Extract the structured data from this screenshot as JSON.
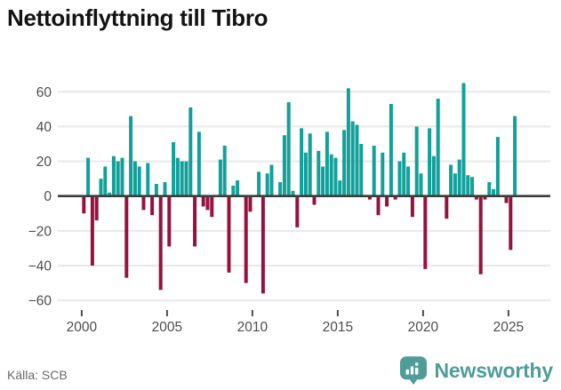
{
  "title": "Nettoinflyttning till Tibro",
  "footer": {
    "source": "Källa: SCB",
    "brand": "Newsworthy"
  },
  "colors": {
    "positive_bar": "#12A09A",
    "negative_bar": "#97113F",
    "zero_axis": "#3C3C3C",
    "gridline": "#E8E8E8",
    "tick_label": "#4D4D4D",
    "tick_mark": "#4D4D4D",
    "title_text": "#131313",
    "source_text": "#696969",
    "brand_teal": "#4F9C98",
    "logo_glyph": "#FFFFFF",
    "background": "#FFFFFF"
  },
  "chart_data": {
    "type": "bar",
    "title": "Nettoinflyttning till Tibro",
    "frequency": "quarterly",
    "start_period": "2000-Q1",
    "end_period": "2025-Q2",
    "grid": true,
    "legend": false,
    "ylim": [
      -62,
      67
    ],
    "y_ticks": [
      60,
      40,
      20,
      0,
      -20,
      -40,
      -60
    ],
    "y_tick_labels": [
      "60",
      "40",
      "20",
      "0",
      "−20",
      "−40",
      "−60"
    ],
    "x_tick_years": [
      2000,
      2005,
      2010,
      2015,
      2020,
      2025
    ],
    "x_tick_labels": [
      "2000",
      "2005",
      "2010",
      "2015",
      "2020",
      "2025"
    ],
    "values": [
      -10,
      22,
      -40,
      -14,
      10,
      17,
      2,
      23,
      20,
      22,
      -47,
      46,
      20,
      17,
      -8,
      19,
      -11,
      7,
      -54,
      8,
      -29,
      31,
      22,
      20,
      20,
      51,
      -29,
      37,
      -6,
      -8,
      -12,
      0,
      21,
      29,
      -44,
      6,
      9,
      0,
      -50,
      -9,
      0,
      14,
      -56,
      13,
      18,
      0,
      8,
      35,
      54,
      3,
      -18,
      39,
      25,
      36,
      -5,
      26,
      17,
      37,
      24,
      22,
      9,
      38,
      62,
      43,
      41,
      30,
      0,
      -2,
      29,
      -11,
      25,
      -6,
      53,
      -2,
      20,
      25,
      17,
      -12,
      40,
      13,
      -42,
      39,
      23,
      56,
      0,
      -13,
      18,
      13,
      21,
      65,
      12,
      11,
      -2,
      -45,
      -2,
      8,
      4,
      34,
      0,
      -4,
      -31,
      46
    ]
  }
}
